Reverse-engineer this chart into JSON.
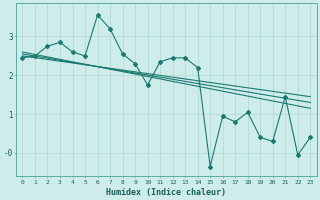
{
  "title": "",
  "xlabel": "Humidex (Indice chaleur)",
  "ylabel": "",
  "bg_color": "#ceecea",
  "grid_color": "#aed8d4",
  "line_color": "#1a7a70",
  "xlim": [
    -0.5,
    23.5
  ],
  "ylim": [
    -0.6,
    3.85
  ],
  "yticks": [
    0,
    1,
    2,
    3
  ],
  "ytick_labels": [
    "-0",
    "1",
    "2",
    "3"
  ],
  "xticks": [
    0,
    1,
    2,
    3,
    4,
    5,
    6,
    7,
    8,
    9,
    10,
    11,
    12,
    13,
    14,
    15,
    16,
    17,
    18,
    19,
    20,
    21,
    22,
    23
  ],
  "series1_x": [
    0,
    1,
    2,
    3,
    4,
    5,
    6,
    7,
    8,
    9,
    10,
    11,
    12,
    13,
    14,
    15,
    16,
    17,
    18,
    19,
    20,
    21,
    22,
    23
  ],
  "series1_y": [
    2.45,
    2.5,
    2.75,
    2.85,
    2.6,
    2.5,
    3.55,
    3.2,
    2.55,
    2.3,
    1.75,
    2.35,
    2.45,
    2.45,
    2.2,
    -0.35,
    0.95,
    0.8,
    1.05,
    0.4,
    0.3,
    1.45,
    -0.05,
    0.4
  ],
  "series2_x": [
    0,
    23
  ],
  "series2_y": [
    2.6,
    1.15
  ],
  "series3_x": [
    0,
    23
  ],
  "series3_y": [
    2.55,
    1.3
  ],
  "series4_x": [
    0,
    23
  ],
  "series4_y": [
    2.5,
    1.45
  ]
}
